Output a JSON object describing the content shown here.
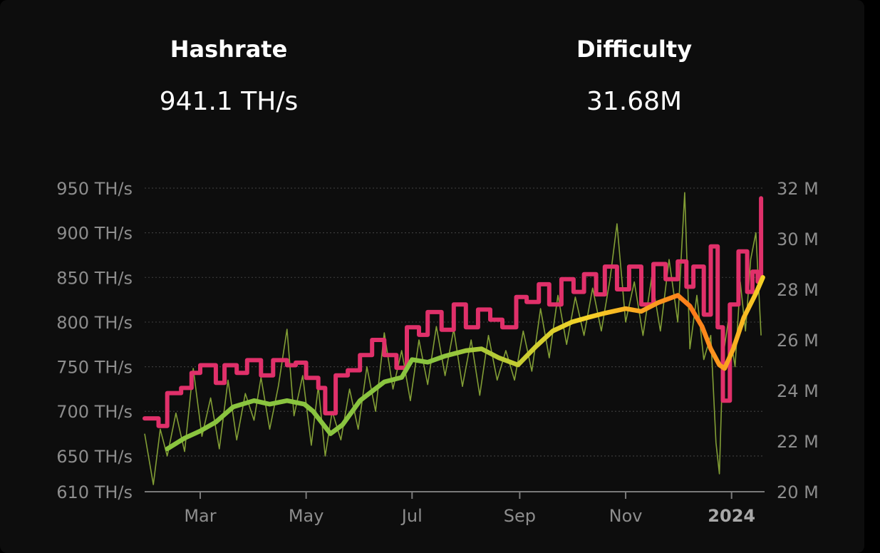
{
  "header": {
    "hashrate_label": "Hashrate",
    "hashrate_value": "941.1 TH/s",
    "difficulty_label": "Difficulty",
    "difficulty_value": "31.68M"
  },
  "colors": {
    "background": "#0d0d0d",
    "grid": "#3a3a3a",
    "hashrate_raw": "#8fae3a",
    "difficulty": "#e0306a",
    "ma_start": "#8ac43f",
    "ma_mid": "#f5d327",
    "ma_end": "#ff7a1a"
  },
  "chart_data": {
    "type": "line",
    "x_axis": {
      "type": "date",
      "range": [
        "2023-01-28",
        "2024-01-20"
      ],
      "ticks": [
        {
          "date": "2023-03-01",
          "label": "Mar",
          "bold": false
        },
        {
          "date": "2023-05-01",
          "label": "May",
          "bold": false
        },
        {
          "date": "2023-07-01",
          "label": "Jul",
          "bold": false
        },
        {
          "date": "2023-09-01",
          "label": "Sep",
          "bold": false
        },
        {
          "date": "2023-11-01",
          "label": "Nov",
          "bold": false
        },
        {
          "date": "2024-01-01",
          "label": "2024",
          "bold": true
        }
      ]
    },
    "y_left": {
      "range": [
        610,
        950
      ],
      "ticks": [
        {
          "value": 950,
          "label": "950 TH/s"
        },
        {
          "value": 900,
          "label": "900 TH/s"
        },
        {
          "value": 850,
          "label": "850 TH/s"
        },
        {
          "value": 800,
          "label": "800 TH/s"
        },
        {
          "value": 750,
          "label": "750 TH/s"
        },
        {
          "value": 700,
          "label": "700 TH/s"
        },
        {
          "value": 650,
          "label": "650 TH/s"
        },
        {
          "value": 610,
          "label": "610 TH/s"
        }
      ]
    },
    "y_right": {
      "range": [
        20,
        32
      ],
      "ticks": [
        {
          "value": 32,
          "label": "32 M"
        },
        {
          "value": 30,
          "label": "30 M"
        },
        {
          "value": 28,
          "label": "28 M"
        },
        {
          "value": 26,
          "label": "26 M"
        },
        {
          "value": 24,
          "label": "24 M"
        },
        {
          "value": 22,
          "label": "22 M"
        },
        {
          "value": 20,
          "label": "20 M"
        }
      ]
    },
    "grid": true,
    "series": [
      {
        "key": "hashrate_ma",
        "axis": "left",
        "points": [
          [
            "2023-02-10",
            658
          ],
          [
            "2023-02-20",
            670
          ],
          [
            "2023-03-01",
            678
          ],
          [
            "2023-03-10",
            688
          ],
          [
            "2023-03-20",
            705
          ],
          [
            "2023-04-01",
            712
          ],
          [
            "2023-04-10",
            708
          ],
          [
            "2023-04-20",
            712
          ],
          [
            "2023-04-30",
            708
          ],
          [
            "2023-05-05",
            700
          ],
          [
            "2023-05-15",
            675
          ],
          [
            "2023-05-22",
            685
          ],
          [
            "2023-06-01",
            712
          ],
          [
            "2023-06-15",
            733
          ],
          [
            "2023-06-25",
            738
          ],
          [
            "2023-07-01",
            758
          ],
          [
            "2023-07-10",
            755
          ],
          [
            "2023-07-20",
            762
          ],
          [
            "2023-08-01",
            768
          ],
          [
            "2023-08-10",
            770
          ],
          [
            "2023-08-20",
            760
          ],
          [
            "2023-08-31",
            752
          ],
          [
            "2023-09-10",
            772
          ],
          [
            "2023-09-20",
            790
          ],
          [
            "2023-10-01",
            800
          ],
          [
            "2023-10-10",
            805
          ],
          [
            "2023-10-20",
            810
          ],
          [
            "2023-11-01",
            815
          ],
          [
            "2023-11-10",
            812
          ],
          [
            "2023-11-20",
            822
          ],
          [
            "2023-12-01",
            830
          ],
          [
            "2023-12-08",
            818
          ],
          [
            "2023-12-15",
            795
          ],
          [
            "2023-12-20",
            770
          ],
          [
            "2023-12-25",
            752
          ],
          [
            "2023-12-28",
            748
          ],
          [
            "2024-01-02",
            770
          ],
          [
            "2024-01-08",
            805
          ],
          [
            "2024-01-15",
            832
          ],
          [
            "2024-01-19",
            850
          ]
        ]
      },
      {
        "key": "difficulty",
        "axis": "right",
        "points": [
          [
            "2023-01-28",
            22.9
          ],
          [
            "2023-02-05",
            22.6
          ],
          [
            "2023-02-10",
            23.9
          ],
          [
            "2023-02-18",
            24.1
          ],
          [
            "2023-02-24",
            24.7
          ],
          [
            "2023-03-01",
            25.0
          ],
          [
            "2023-03-10",
            24.3
          ],
          [
            "2023-03-15",
            25.0
          ],
          [
            "2023-03-22",
            24.7
          ],
          [
            "2023-03-28",
            25.2
          ],
          [
            "2023-04-05",
            24.6
          ],
          [
            "2023-04-12",
            25.2
          ],
          [
            "2023-04-20",
            25.0
          ],
          [
            "2023-04-25",
            25.1
          ],
          [
            "2023-05-01",
            24.5
          ],
          [
            "2023-05-08",
            24.1
          ],
          [
            "2023-05-12",
            23.1
          ],
          [
            "2023-05-18",
            24.6
          ],
          [
            "2023-05-25",
            24.8
          ],
          [
            "2023-06-01",
            25.4
          ],
          [
            "2023-06-08",
            26.0
          ],
          [
            "2023-06-15",
            25.4
          ],
          [
            "2023-06-22",
            24.9
          ],
          [
            "2023-06-28",
            26.5
          ],
          [
            "2023-07-05",
            26.2
          ],
          [
            "2023-07-10",
            27.1
          ],
          [
            "2023-07-18",
            26.4
          ],
          [
            "2023-07-25",
            27.4
          ],
          [
            "2023-08-01",
            26.5
          ],
          [
            "2023-08-08",
            27.2
          ],
          [
            "2023-08-15",
            26.8
          ],
          [
            "2023-08-22",
            26.5
          ],
          [
            "2023-08-30",
            27.7
          ],
          [
            "2023-09-05",
            27.5
          ],
          [
            "2023-09-12",
            28.2
          ],
          [
            "2023-09-18",
            27.4
          ],
          [
            "2023-09-25",
            28.4
          ],
          [
            "2023-10-02",
            27.9
          ],
          [
            "2023-10-08",
            28.6
          ],
          [
            "2023-10-15",
            27.8
          ],
          [
            "2023-10-20",
            28.9
          ],
          [
            "2023-10-27",
            28.0
          ],
          [
            "2023-11-03",
            28.9
          ],
          [
            "2023-11-10",
            27.4
          ],
          [
            "2023-11-17",
            29.0
          ],
          [
            "2023-11-24",
            28.4
          ],
          [
            "2023-12-01",
            29.1
          ],
          [
            "2023-12-06",
            28.1
          ],
          [
            "2023-12-10",
            28.9
          ],
          [
            "2023-12-16",
            27.0
          ],
          [
            "2023-12-20",
            29.7
          ],
          [
            "2023-12-24",
            26.5
          ],
          [
            "2023-12-27",
            23.6
          ],
          [
            "2023-12-31",
            27.4
          ],
          [
            "2024-01-05",
            29.5
          ],
          [
            "2024-01-10",
            27.9
          ],
          [
            "2024-01-13",
            28.7
          ],
          [
            "2024-01-16",
            28.3
          ],
          [
            "2024-01-18",
            31.6
          ]
        ]
      },
      {
        "key": "hashrate_raw",
        "axis": "left",
        "points": [
          [
            "2023-01-28",
            675
          ],
          [
            "2023-02-02",
            618
          ],
          [
            "2023-02-06",
            680
          ],
          [
            "2023-02-10",
            650
          ],
          [
            "2023-02-15",
            698
          ],
          [
            "2023-02-20",
            655
          ],
          [
            "2023-02-25",
            748
          ],
          [
            "2023-03-02",
            672
          ],
          [
            "2023-03-07",
            715
          ],
          [
            "2023-03-12",
            658
          ],
          [
            "2023-03-17",
            735
          ],
          [
            "2023-03-22",
            668
          ],
          [
            "2023-03-27",
            720
          ],
          [
            "2023-04-01",
            690
          ],
          [
            "2023-04-05",
            738
          ],
          [
            "2023-04-10",
            680
          ],
          [
            "2023-04-15",
            728
          ],
          [
            "2023-04-20",
            792
          ],
          [
            "2023-04-24",
            695
          ],
          [
            "2023-04-29",
            740
          ],
          [
            "2023-05-04",
            662
          ],
          [
            "2023-05-08",
            728
          ],
          [
            "2023-05-12",
            650
          ],
          [
            "2023-05-16",
            700
          ],
          [
            "2023-05-21",
            668
          ],
          [
            "2023-05-26",
            725
          ],
          [
            "2023-05-31",
            680
          ],
          [
            "2023-06-05",
            750
          ],
          [
            "2023-06-10",
            700
          ],
          [
            "2023-06-15",
            788
          ],
          [
            "2023-06-20",
            725
          ],
          [
            "2023-06-25",
            768
          ],
          [
            "2023-06-30",
            712
          ],
          [
            "2023-07-05",
            780
          ],
          [
            "2023-07-10",
            730
          ],
          [
            "2023-07-15",
            795
          ],
          [
            "2023-07-20",
            740
          ],
          [
            "2023-07-25",
            792
          ],
          [
            "2023-07-30",
            728
          ],
          [
            "2023-08-04",
            780
          ],
          [
            "2023-08-09",
            718
          ],
          [
            "2023-08-14",
            785
          ],
          [
            "2023-08-19",
            735
          ],
          [
            "2023-08-24",
            768
          ],
          [
            "2023-08-29",
            735
          ],
          [
            "2023-09-03",
            790
          ],
          [
            "2023-09-08",
            745
          ],
          [
            "2023-09-13",
            815
          ],
          [
            "2023-09-18",
            760
          ],
          [
            "2023-09-23",
            830
          ],
          [
            "2023-09-28",
            775
          ],
          [
            "2023-10-03",
            828
          ],
          [
            "2023-10-08",
            785
          ],
          [
            "2023-10-13",
            838
          ],
          [
            "2023-10-18",
            790
          ],
          [
            "2023-10-23",
            848
          ],
          [
            "2023-10-27",
            910
          ],
          [
            "2023-11-01",
            800
          ],
          [
            "2023-11-06",
            845
          ],
          [
            "2023-11-11",
            785
          ],
          [
            "2023-11-16",
            850
          ],
          [
            "2023-11-21",
            790
          ],
          [
            "2023-11-26",
            870
          ],
          [
            "2023-12-01",
            800
          ],
          [
            "2023-12-05",
            945
          ],
          [
            "2023-12-08",
            770
          ],
          [
            "2023-12-12",
            830
          ],
          [
            "2023-12-16",
            758
          ],
          [
            "2023-12-20",
            785
          ],
          [
            "2023-12-23",
            665
          ],
          [
            "2023-12-25",
            630
          ],
          [
            "2023-12-27",
            760
          ],
          [
            "2023-12-30",
            800
          ],
          [
            "2024-01-03",
            750
          ],
          [
            "2024-01-06",
            845
          ],
          [
            "2024-01-09",
            790
          ],
          [
            "2024-01-12",
            870
          ],
          [
            "2024-01-15",
            900
          ],
          [
            "2024-01-18",
            785
          ]
        ]
      }
    ]
  }
}
